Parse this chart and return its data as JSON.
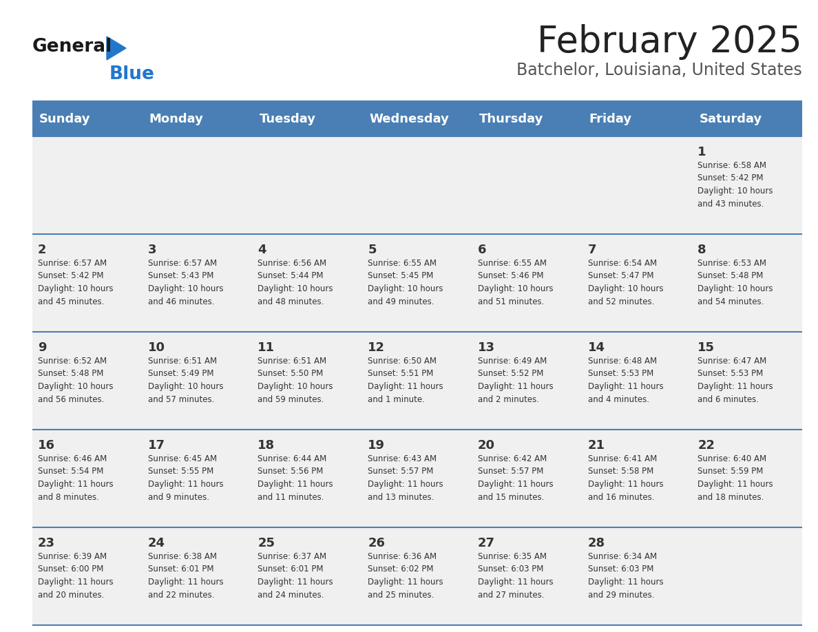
{
  "title": "February 2025",
  "subtitle": "Batchelor, Louisiana, United States",
  "days_of_week": [
    "Sunday",
    "Monday",
    "Tuesday",
    "Wednesday",
    "Thursday",
    "Friday",
    "Saturday"
  ],
  "header_bg": "#4a7fb5",
  "header_text": "#ffffff",
  "row_bg": "#f0f0f0",
  "cell_border": "#4a7fb5",
  "day_number_color": "#333333",
  "text_color": "#333333",
  "logo_general_color": "#1a1a1a",
  "logo_blue_color": "#2277cc",
  "logo_triangle_color": "#2277cc",
  "weeks": [
    {
      "days": [
        {
          "date": null,
          "info": null
        },
        {
          "date": null,
          "info": null
        },
        {
          "date": null,
          "info": null
        },
        {
          "date": null,
          "info": null
        },
        {
          "date": null,
          "info": null
        },
        {
          "date": null,
          "info": null
        },
        {
          "date": 1,
          "info": "Sunrise: 6:58 AM\nSunset: 5:42 PM\nDaylight: 10 hours\nand 43 minutes."
        }
      ]
    },
    {
      "days": [
        {
          "date": 2,
          "info": "Sunrise: 6:57 AM\nSunset: 5:42 PM\nDaylight: 10 hours\nand 45 minutes."
        },
        {
          "date": 3,
          "info": "Sunrise: 6:57 AM\nSunset: 5:43 PM\nDaylight: 10 hours\nand 46 minutes."
        },
        {
          "date": 4,
          "info": "Sunrise: 6:56 AM\nSunset: 5:44 PM\nDaylight: 10 hours\nand 48 minutes."
        },
        {
          "date": 5,
          "info": "Sunrise: 6:55 AM\nSunset: 5:45 PM\nDaylight: 10 hours\nand 49 minutes."
        },
        {
          "date": 6,
          "info": "Sunrise: 6:55 AM\nSunset: 5:46 PM\nDaylight: 10 hours\nand 51 minutes."
        },
        {
          "date": 7,
          "info": "Sunrise: 6:54 AM\nSunset: 5:47 PM\nDaylight: 10 hours\nand 52 minutes."
        },
        {
          "date": 8,
          "info": "Sunrise: 6:53 AM\nSunset: 5:48 PM\nDaylight: 10 hours\nand 54 minutes."
        }
      ]
    },
    {
      "days": [
        {
          "date": 9,
          "info": "Sunrise: 6:52 AM\nSunset: 5:48 PM\nDaylight: 10 hours\nand 56 minutes."
        },
        {
          "date": 10,
          "info": "Sunrise: 6:51 AM\nSunset: 5:49 PM\nDaylight: 10 hours\nand 57 minutes."
        },
        {
          "date": 11,
          "info": "Sunrise: 6:51 AM\nSunset: 5:50 PM\nDaylight: 10 hours\nand 59 minutes."
        },
        {
          "date": 12,
          "info": "Sunrise: 6:50 AM\nSunset: 5:51 PM\nDaylight: 11 hours\nand 1 minute."
        },
        {
          "date": 13,
          "info": "Sunrise: 6:49 AM\nSunset: 5:52 PM\nDaylight: 11 hours\nand 2 minutes."
        },
        {
          "date": 14,
          "info": "Sunrise: 6:48 AM\nSunset: 5:53 PM\nDaylight: 11 hours\nand 4 minutes."
        },
        {
          "date": 15,
          "info": "Sunrise: 6:47 AM\nSunset: 5:53 PM\nDaylight: 11 hours\nand 6 minutes."
        }
      ]
    },
    {
      "days": [
        {
          "date": 16,
          "info": "Sunrise: 6:46 AM\nSunset: 5:54 PM\nDaylight: 11 hours\nand 8 minutes."
        },
        {
          "date": 17,
          "info": "Sunrise: 6:45 AM\nSunset: 5:55 PM\nDaylight: 11 hours\nand 9 minutes."
        },
        {
          "date": 18,
          "info": "Sunrise: 6:44 AM\nSunset: 5:56 PM\nDaylight: 11 hours\nand 11 minutes."
        },
        {
          "date": 19,
          "info": "Sunrise: 6:43 AM\nSunset: 5:57 PM\nDaylight: 11 hours\nand 13 minutes."
        },
        {
          "date": 20,
          "info": "Sunrise: 6:42 AM\nSunset: 5:57 PM\nDaylight: 11 hours\nand 15 minutes."
        },
        {
          "date": 21,
          "info": "Sunrise: 6:41 AM\nSunset: 5:58 PM\nDaylight: 11 hours\nand 16 minutes."
        },
        {
          "date": 22,
          "info": "Sunrise: 6:40 AM\nSunset: 5:59 PM\nDaylight: 11 hours\nand 18 minutes."
        }
      ]
    },
    {
      "days": [
        {
          "date": 23,
          "info": "Sunrise: 6:39 AM\nSunset: 6:00 PM\nDaylight: 11 hours\nand 20 minutes."
        },
        {
          "date": 24,
          "info": "Sunrise: 6:38 AM\nSunset: 6:01 PM\nDaylight: 11 hours\nand 22 minutes."
        },
        {
          "date": 25,
          "info": "Sunrise: 6:37 AM\nSunset: 6:01 PM\nDaylight: 11 hours\nand 24 minutes."
        },
        {
          "date": 26,
          "info": "Sunrise: 6:36 AM\nSunset: 6:02 PM\nDaylight: 11 hours\nand 25 minutes."
        },
        {
          "date": 27,
          "info": "Sunrise: 6:35 AM\nSunset: 6:03 PM\nDaylight: 11 hours\nand 27 minutes."
        },
        {
          "date": 28,
          "info": "Sunrise: 6:34 AM\nSunset: 6:03 PM\nDaylight: 11 hours\nand 29 minutes."
        },
        {
          "date": null,
          "info": null
        }
      ]
    }
  ]
}
